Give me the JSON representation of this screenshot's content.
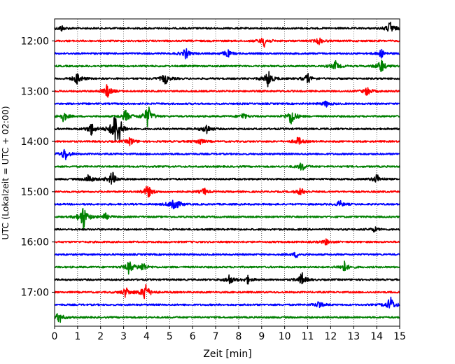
{
  "chart_data": {
    "type": "line",
    "title": "",
    "xlabel": "Zeit  [min]",
    "ylabel": "UTC (Lokalzeit = UTC + 02:00)",
    "xlim": [
      0,
      15
    ],
    "x_ticks": [
      "0",
      "1",
      "2",
      "3",
      "4",
      "5",
      "6",
      "7",
      "8",
      "9",
      "10",
      "11",
      "12",
      "13",
      "14",
      "15"
    ],
    "y_tick_labels": [
      "12:00",
      "13:00",
      "14:00",
      "15:00",
      "16:00",
      "17:00"
    ],
    "grid": "vertical dotted at each minute",
    "legend": "none",
    "colors": [
      "#000000",
      "#ff0000",
      "#0000ff",
      "#008000"
    ],
    "traces": [
      {
        "start": "11:45",
        "events": [
          [
            0.3,
            0.3
          ],
          [
            14.6,
            0.75
          ]
        ]
      },
      {
        "start": "12:00",
        "events": [
          [
            9.1,
            0.6
          ],
          [
            11.5,
            0.35
          ]
        ]
      },
      {
        "start": "12:15",
        "events": [
          [
            5.7,
            0.55
          ],
          [
            7.5,
            0.45
          ],
          [
            14.2,
            0.4
          ]
        ]
      },
      {
        "start": "12:30",
        "events": [
          [
            12.2,
            0.5
          ],
          [
            14.2,
            0.75
          ]
        ]
      },
      {
        "start": "12:45",
        "events": [
          [
            1.0,
            0.7
          ],
          [
            4.8,
            0.6
          ],
          [
            9.3,
            1.0
          ],
          [
            11.0,
            0.5
          ]
        ]
      },
      {
        "start": "13:00",
        "events": [
          [
            2.3,
            0.7
          ],
          [
            13.6,
            0.5
          ]
        ]
      },
      {
        "start": "13:15",
        "events": [
          [
            11.8,
            0.3
          ]
        ]
      },
      {
        "start": "13:30",
        "events": [
          [
            0.4,
            0.55
          ],
          [
            3.1,
            0.7
          ],
          [
            4.05,
            1.2
          ],
          [
            8.2,
            0.35
          ],
          [
            10.3,
            1.0
          ]
        ]
      },
      {
        "start": "13:45",
        "events": [
          [
            1.6,
            0.7
          ],
          [
            2.6,
            1.4
          ],
          [
            2.8,
            1.2
          ],
          [
            6.6,
            0.6
          ]
        ]
      },
      {
        "start": "14:00",
        "events": [
          [
            3.3,
            0.45
          ],
          [
            6.3,
            0.4
          ],
          [
            10.6,
            0.45
          ]
        ]
      },
      {
        "start": "14:15",
        "events": [
          [
            0.45,
            0.7
          ]
        ]
      },
      {
        "start": "14:30",
        "events": [
          [
            10.75,
            0.45
          ]
        ]
      },
      {
        "start": "14:45",
        "events": [
          [
            1.5,
            0.55
          ],
          [
            2.5,
            0.8
          ],
          [
            14.0,
            0.5
          ]
        ]
      },
      {
        "start": "15:00",
        "events": [
          [
            4.05,
            0.75
          ],
          [
            6.5,
            0.35
          ],
          [
            10.7,
            0.4
          ]
        ]
      },
      {
        "start": "15:15",
        "events": [
          [
            5.2,
            1.1
          ],
          [
            12.4,
            0.35
          ]
        ]
      },
      {
        "start": "15:30",
        "events": [
          [
            1.25,
            1.4
          ],
          [
            2.2,
            0.35
          ]
        ]
      },
      {
        "start": "15:45",
        "events": [
          [
            13.9,
            0.25
          ]
        ]
      },
      {
        "start": "16:00",
        "events": [
          [
            11.8,
            0.3
          ]
        ]
      },
      {
        "start": "16:15",
        "events": [
          [
            10.5,
            0.3
          ]
        ]
      },
      {
        "start": "16:30",
        "events": [
          [
            3.25,
            0.75
          ],
          [
            3.85,
            0.5
          ],
          [
            12.6,
            0.6
          ]
        ]
      },
      {
        "start": "16:45",
        "events": [
          [
            7.6,
            0.55
          ],
          [
            8.4,
            0.4
          ],
          [
            10.75,
            0.7
          ]
        ]
      },
      {
        "start": "17:00",
        "events": [
          [
            3.1,
            0.55
          ],
          [
            3.95,
            1.1
          ]
        ]
      },
      {
        "start": "17:15",
        "events": [
          [
            11.5,
            0.4
          ],
          [
            14.6,
            0.9
          ]
        ]
      },
      {
        "start": "17:30",
        "events": [
          [
            0.2,
            0.6
          ]
        ]
      }
    ]
  }
}
